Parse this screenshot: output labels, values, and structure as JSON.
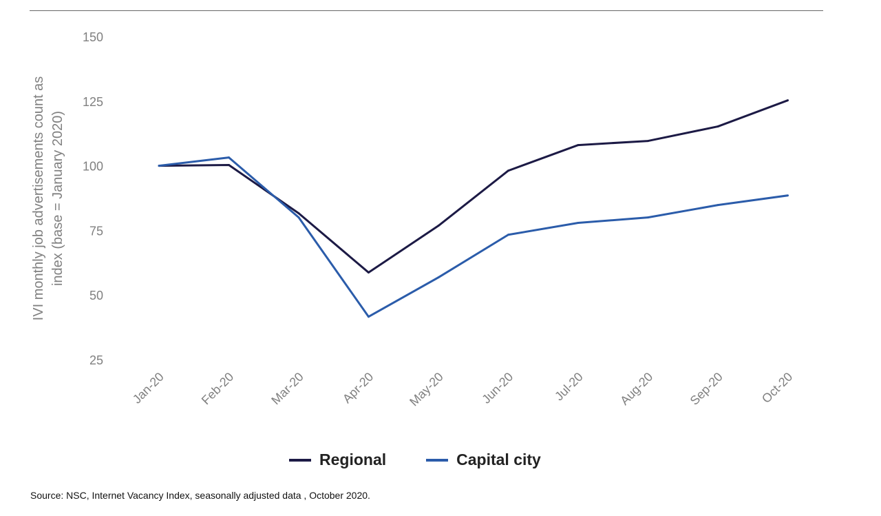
{
  "chart_data": {
    "type": "line",
    "title": "",
    "ylabel": [
      "IVI monthly job advertisements count as",
      "index (base = January 2020)"
    ],
    "xlabel": "",
    "ylim": [
      25,
      150
    ],
    "yticks": [
      150,
      125,
      100,
      75,
      50,
      25
    ],
    "categories": [
      "Jan-20",
      "Feb-20",
      "Mar-20",
      "Apr-20",
      "May-20",
      "Jun-20",
      "Jul-20",
      "Aug-20",
      "Sep-20",
      "Oct-20"
    ],
    "grid": false,
    "legend_position": "bottom",
    "series": [
      {
        "name": "Regional",
        "color": "#1c1a45",
        "values": [
          100,
          100.3,
          81.6,
          58.7,
          76.8,
          98.1,
          108,
          109.6,
          115.2,
          125.3
        ]
      },
      {
        "name": "Capital city",
        "color": "#2b5caa",
        "values": [
          100,
          103.2,
          80,
          41.6,
          56.8,
          73.3,
          77.9,
          80,
          84.8,
          88.5
        ]
      }
    ]
  },
  "source": "Source: NSC, Internet Vacancy Index, seasonally adjusted data , October 2020."
}
